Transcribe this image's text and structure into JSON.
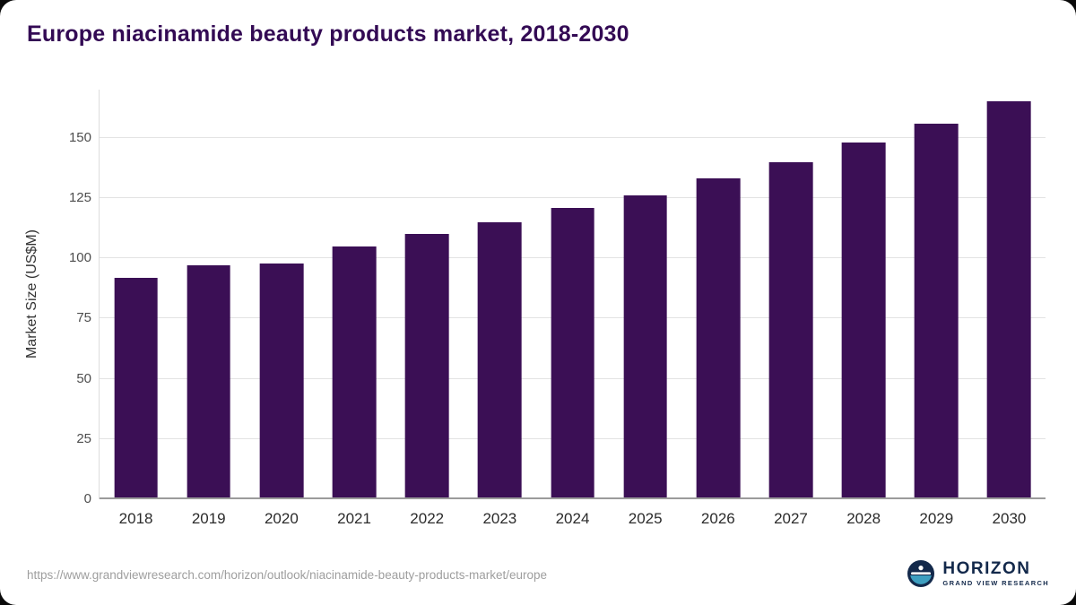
{
  "header": {
    "title": "Europe niacinamide beauty products market, 2018-2030"
  },
  "chart_data": {
    "type": "bar",
    "title": "Europe niacinamide beauty products market, 2018-2030",
    "categories": [
      "2018",
      "2019",
      "2020",
      "2021",
      "2022",
      "2023",
      "2024",
      "2025",
      "2026",
      "2027",
      "2028",
      "2029",
      "2030"
    ],
    "values": [
      92,
      97,
      98,
      105,
      110,
      115,
      121,
      126,
      133,
      140,
      148,
      156,
      165
    ],
    "xlabel": "",
    "ylabel": "Market Size (US$M)",
    "yticks": [
      0,
      25,
      50,
      75,
      100,
      125,
      150
    ],
    "ylim": [
      0,
      170
    ],
    "grid": true,
    "legend": false,
    "bar_color": "#3b0f55"
  },
  "footer": {
    "source_url": "https://www.grandviewresearch.com/horizon/outlook/niacinamide-beauty-products-market/europe",
    "logo": {
      "name": "HORIZON",
      "subtitle": "GRAND VIEW RESEARCH"
    }
  },
  "colors": {
    "title": "#330a54",
    "bar": "#3b0f55",
    "gridline": "#e3e3e3",
    "baseline": "#9b9b9b",
    "axis_text": "#4d4d4d",
    "source_text": "#9e9e9e",
    "logo_navy": "#13294b",
    "logo_teal": "#3e9fc0",
    "background": "#ffffff"
  }
}
